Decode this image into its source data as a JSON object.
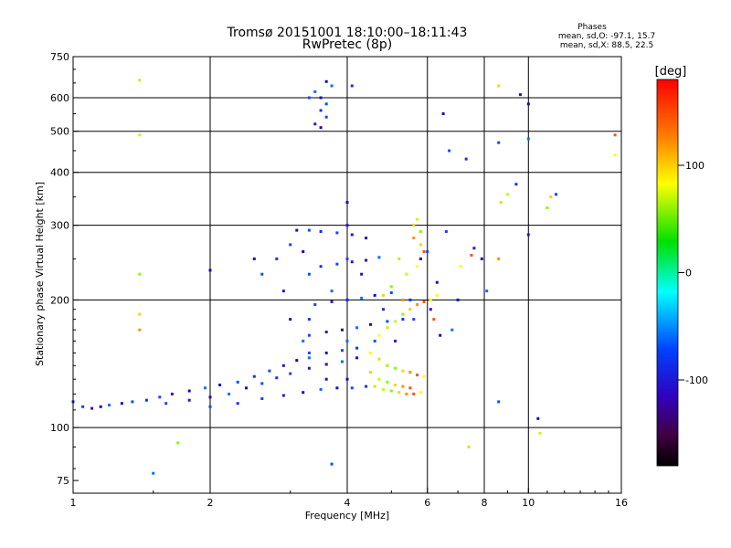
{
  "chart_data": {
    "type": "scatter",
    "title": "Tromsø 20151001 18:10:00–18:11:43",
    "subtitle": "RwPretec (8p)",
    "xlabel": "Frequency [MHz]",
    "ylabel": "Stationary phase Virtual Height [km]",
    "x_scale": "log",
    "y_scale": "log",
    "xlim": [
      1,
      16
    ],
    "ylim": [
      70,
      750
    ],
    "x_ticks": [
      1,
      2,
      4,
      6,
      8,
      10,
      16
    ],
    "x_tick_labels": [
      "1",
      "2",
      "4",
      "6",
      "8",
      "10",
      "16"
    ],
    "y_ticks": [
      75,
      100,
      200,
      300,
      400,
      500,
      600,
      750
    ],
    "y_tick_labels": [
      "75",
      "100",
      "200",
      "300",
      "400",
      "500",
      "600",
      "750"
    ],
    "grid": true,
    "phases": {
      "heading": "Phases",
      "line_o": "mean, sd,O:  -97.1, 15.7",
      "line_x": "mean, sd,X:   88.5, 22.5"
    },
    "colorbar": {
      "label": "[deg]",
      "range": [
        -180,
        180
      ],
      "ticks": [
        100,
        0,
        -100
      ],
      "tick_labels": [
        "100",
        "0",
        "-100"
      ]
    },
    "series": [
      {
        "name": "O",
        "points": [
          [
            1.0,
            115
          ],
          [
            1.05,
            112
          ],
          [
            1.1,
            111
          ],
          [
            1.15,
            112
          ],
          [
            1.2,
            113
          ],
          [
            1.28,
            114
          ],
          [
            1.35,
            115
          ],
          [
            1.45,
            116
          ],
          [
            1.55,
            118
          ],
          [
            1.65,
            120
          ],
          [
            1.8,
            122
          ],
          [
            1.95,
            124
          ],
          [
            2.1,
            126
          ],
          [
            2.3,
            128
          ],
          [
            2.5,
            132
          ],
          [
            2.7,
            136
          ],
          [
            2.9,
            140
          ],
          [
            3.1,
            144
          ],
          [
            3.3,
            146
          ],
          [
            3.6,
            150
          ],
          [
            3.9,
            152
          ],
          [
            4.2,
            154
          ],
          [
            1.6,
            114
          ],
          [
            1.8,
            116
          ],
          [
            2.0,
            118
          ],
          [
            2.2,
            120
          ],
          [
            2.4,
            124
          ],
          [
            2.6,
            127
          ],
          [
            2.8,
            131
          ],
          [
            3.0,
            134
          ],
          [
            3.3,
            138
          ],
          [
            3.6,
            141
          ],
          [
            3.9,
            143
          ],
          [
            4.2,
            146
          ],
          [
            2.0,
            112
          ],
          [
            2.3,
            114
          ],
          [
            2.6,
            117
          ],
          [
            2.9,
            119
          ],
          [
            3.2,
            121
          ],
          [
            3.5,
            123
          ],
          [
            3.8,
            124
          ],
          [
            4.1,
            124
          ],
          [
            4.4,
            125
          ],
          [
            3.3,
            165
          ],
          [
            3.6,
            168
          ],
          [
            3.9,
            170
          ],
          [
            4.2,
            172
          ],
          [
            4.5,
            175
          ],
          [
            4.9,
            178
          ],
          [
            5.3,
            180
          ],
          [
            3.4,
            195
          ],
          [
            3.7,
            198
          ],
          [
            4.0,
            200
          ],
          [
            4.3,
            202
          ],
          [
            4.6,
            205
          ],
          [
            5.0,
            208
          ],
          [
            3.5,
            240
          ],
          [
            3.8,
            243
          ],
          [
            4.1,
            246
          ],
          [
            4.4,
            248
          ],
          [
            4.7,
            252
          ],
          [
            3.1,
            292
          ],
          [
            3.3,
            292
          ],
          [
            3.5,
            290
          ],
          [
            3.8,
            288
          ],
          [
            4.1,
            285
          ],
          [
            4.4,
            280
          ],
          [
            3.4,
            620
          ],
          [
            3.5,
            600
          ],
          [
            3.6,
            580
          ],
          [
            3.5,
            560
          ],
          [
            3.6,
            540
          ],
          [
            3.4,
            520
          ],
          [
            3.5,
            510
          ],
          [
            3.7,
            640
          ],
          [
            3.6,
            655
          ],
          [
            3.3,
            600
          ],
          [
            4.0,
            200
          ],
          [
            4.0,
            250
          ],
          [
            4.0,
            300
          ],
          [
            4.0,
            340
          ],
          [
            4.0,
            160
          ],
          [
            4.0,
            130
          ],
          [
            3.3,
            230
          ],
          [
            3.3,
            180
          ],
          [
            3.3,
            150
          ],
          [
            3.6,
            130
          ],
          [
            3.2,
            260
          ],
          [
            3.7,
            210
          ],
          [
            4.3,
            230
          ],
          [
            4.6,
            160
          ],
          [
            4.8,
            190
          ],
          [
            5.6,
            180
          ],
          [
            6.1,
            190
          ],
          [
            6.4,
            165
          ],
          [
            6.8,
            170
          ],
          [
            7.0,
            200
          ],
          [
            2.6,
            230
          ],
          [
            2.8,
            250
          ],
          [
            3.0,
            270
          ],
          [
            2.9,
            210
          ],
          [
            3.0,
            180
          ],
          [
            3.2,
            160
          ],
          [
            6.5,
            550
          ],
          [
            6.7,
            450
          ],
          [
            7.3,
            430
          ],
          [
            8.6,
            470
          ],
          [
            9.6,
            610
          ],
          [
            10.0,
            580
          ],
          [
            10.0,
            480
          ],
          [
            10.5,
            105
          ],
          [
            8.6,
            115
          ],
          [
            9.4,
            375
          ],
          [
            11.5,
            355
          ],
          [
            10.0,
            285
          ],
          [
            2.0,
            235
          ],
          [
            1.5,
            78
          ],
          [
            2.5,
            250
          ],
          [
            3.7,
            82
          ],
          [
            4.1,
            640
          ],
          [
            6.6,
            290
          ],
          [
            7.6,
            265
          ],
          [
            7.9,
            250
          ],
          [
            8.1,
            210
          ],
          [
            6.3,
            220
          ],
          [
            6.0,
            260
          ],
          [
            5.5,
            200
          ],
          [
            4.9,
            140
          ],
          [
            5.1,
            160
          ],
          [
            5.8,
            250
          ]
        ]
      },
      {
        "name": "X",
        "points": [
          [
            4.5,
            150
          ],
          [
            4.7,
            145
          ],
          [
            4.9,
            140
          ],
          [
            5.1,
            138
          ],
          [
            5.3,
            136
          ],
          [
            5.5,
            135
          ],
          [
            5.7,
            133
          ],
          [
            5.9,
            132
          ],
          [
            4.6,
            125
          ],
          [
            4.8,
            123
          ],
          [
            5.0,
            122
          ],
          [
            5.2,
            121
          ],
          [
            5.4,
            120
          ],
          [
            5.6,
            120
          ],
          [
            5.8,
            121
          ],
          [
            4.5,
            135
          ],
          [
            4.7,
            130
          ],
          [
            4.9,
            128
          ],
          [
            5.1,
            126
          ],
          [
            5.3,
            125
          ],
          [
            5.5,
            124
          ],
          [
            4.7,
            165
          ],
          [
            4.9,
            172
          ],
          [
            5.1,
            178
          ],
          [
            5.3,
            185
          ],
          [
            5.5,
            190
          ],
          [
            5.7,
            195
          ],
          [
            5.9,
            198
          ],
          [
            6.1,
            200
          ],
          [
            5.6,
            300
          ],
          [
            5.7,
            310
          ],
          [
            5.8,
            290
          ],
          [
            5.8,
            270
          ],
          [
            5.6,
            280
          ],
          [
            5.9,
            260
          ],
          [
            5.7,
            240
          ],
          [
            5.2,
            250
          ],
          [
            5.4,
            230
          ],
          [
            5.0,
            215
          ],
          [
            4.8,
            205
          ],
          [
            5.3,
            200
          ],
          [
            6.2,
            180
          ],
          [
            6.3,
            205
          ],
          [
            8.7,
            340
          ],
          [
            9.0,
            355
          ],
          [
            11.0,
            330
          ],
          [
            11.2,
            350
          ],
          [
            8.6,
            250
          ],
          [
            7.5,
            255
          ],
          [
            7.1,
            240
          ],
          [
            1.4,
            660
          ],
          [
            1.4,
            490
          ],
          [
            1.4,
            230
          ],
          [
            1.4,
            185
          ],
          [
            1.4,
            170
          ],
          [
            15.5,
            490
          ],
          [
            15.5,
            440
          ],
          [
            7.4,
            90
          ],
          [
            10.6,
            97
          ],
          [
            1.7,
            92
          ],
          [
            8.6,
            640
          ]
        ]
      }
    ]
  }
}
